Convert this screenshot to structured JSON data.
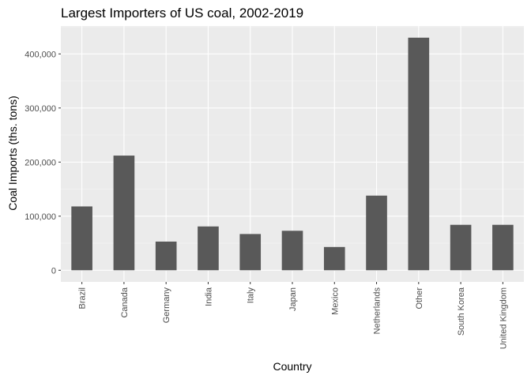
{
  "chart_data": {
    "type": "bar",
    "title": "Largest Importers of US coal, 2002-2019",
    "xlabel": "Country",
    "ylabel": "Coal Imports (ths. tons)",
    "categories": [
      "Brazil",
      "Canada",
      "Germany",
      "India",
      "Italy",
      "Japan",
      "Mexico",
      "Netherlands",
      "Other",
      "South Korea",
      "United Kingdom"
    ],
    "values": [
      118000,
      212000,
      53000,
      81000,
      67000,
      73000,
      43000,
      138000,
      430000,
      84000,
      84000
    ],
    "yticks": [
      0,
      100000,
      200000,
      300000,
      400000
    ],
    "ytick_labels": [
      "0",
      "100,000",
      "200,000",
      "300,000",
      "400,000"
    ],
    "ylim": [
      -21500,
      451500
    ],
    "grid": true,
    "colors": {
      "bar": "#595959",
      "panel_background": "#ebebeb",
      "grid_major": "#ffffff",
      "grid_minor": "#f5f5f5",
      "tick": "#333333"
    }
  }
}
